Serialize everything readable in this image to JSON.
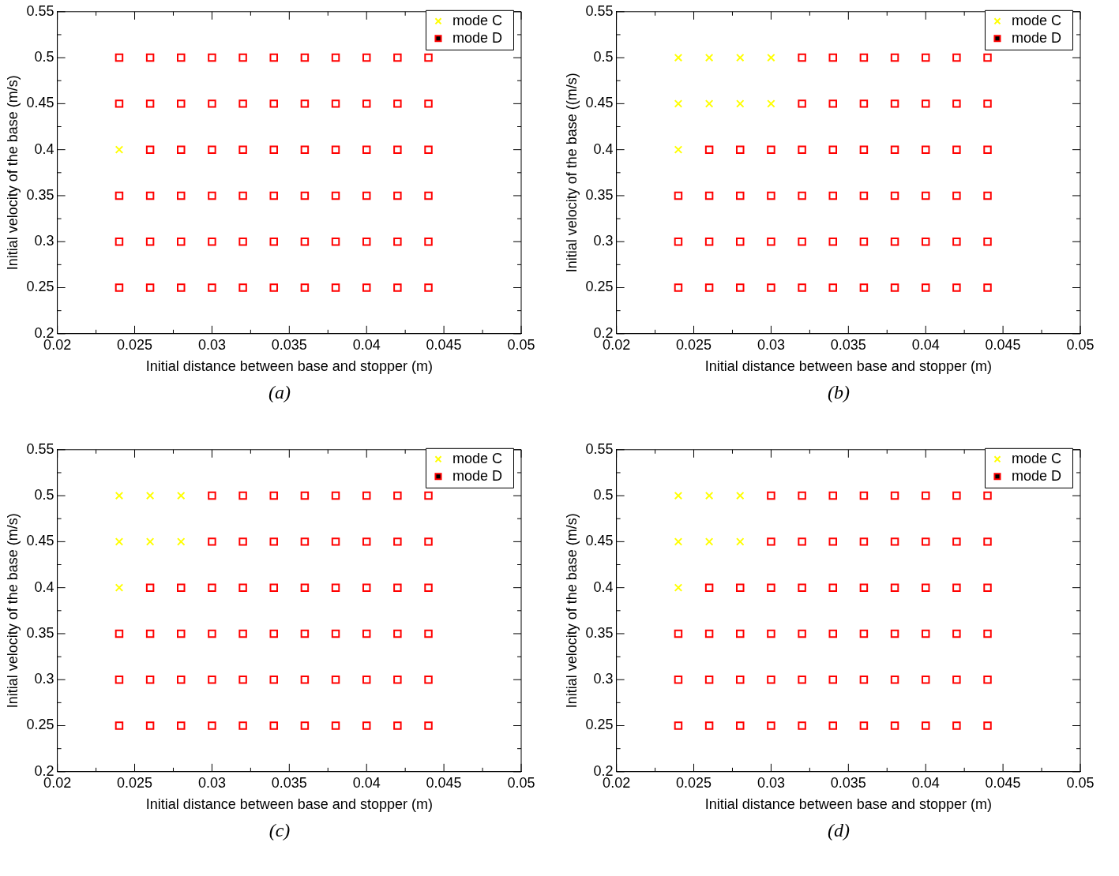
{
  "chart_data": [
    {
      "type": "scatter",
      "xlabel": "Initial distance between base and stopper (m)",
      "ylabel": "Initial velocity of the base (m/s)",
      "xlim": [
        0.02,
        0.05
      ],
      "ylim": [
        0.2,
        0.55
      ],
      "xticks": [
        0.02,
        0.025,
        0.03,
        0.035,
        0.04,
        0.045,
        0.05
      ],
      "yticks": [
        0.2,
        0.25,
        0.3,
        0.35,
        0.4,
        0.45,
        0.5,
        0.55
      ],
      "grid": false,
      "legend": "top right",
      "annotations": [
        "(a)"
      ],
      "series": [
        {
          "name": "mode C",
          "color": "#ffff00",
          "marker": "cross",
          "x": [
            0.024
          ],
          "values": [
            0.4
          ]
        },
        {
          "name": "mode D",
          "color": "#ff0000",
          "marker": "square",
          "x": [
            0.024,
            0.026,
            0.028,
            0.03,
            0.032,
            0.034,
            0.036,
            0.038,
            0.04,
            0.042,
            0.044,
            0.024,
            0.026,
            0.028,
            0.03,
            0.032,
            0.034,
            0.036,
            0.038,
            0.04,
            0.042,
            0.044,
            0.026,
            0.028,
            0.03,
            0.032,
            0.034,
            0.036,
            0.038,
            0.04,
            0.042,
            0.044,
            0.024,
            0.026,
            0.028,
            0.03,
            0.032,
            0.034,
            0.036,
            0.038,
            0.04,
            0.042,
            0.044,
            0.024,
            0.026,
            0.028,
            0.03,
            0.032,
            0.034,
            0.036,
            0.038,
            0.04,
            0.042,
            0.044,
            0.024,
            0.026,
            0.028,
            0.03,
            0.032,
            0.034,
            0.036,
            0.038,
            0.04,
            0.042,
            0.044
          ],
          "values": [
            0.5,
            0.5,
            0.5,
            0.5,
            0.5,
            0.5,
            0.5,
            0.5,
            0.5,
            0.5,
            0.5,
            0.45,
            0.45,
            0.45,
            0.45,
            0.45,
            0.45,
            0.45,
            0.45,
            0.45,
            0.45,
            0.45,
            0.4,
            0.4,
            0.4,
            0.4,
            0.4,
            0.4,
            0.4,
            0.4,
            0.4,
            0.4,
            0.35,
            0.35,
            0.35,
            0.35,
            0.35,
            0.35,
            0.35,
            0.35,
            0.35,
            0.35,
            0.35,
            0.3,
            0.3,
            0.3,
            0.3,
            0.3,
            0.3,
            0.3,
            0.3,
            0.3,
            0.3,
            0.3,
            0.25,
            0.25,
            0.25,
            0.25,
            0.25,
            0.25,
            0.25,
            0.25,
            0.25,
            0.25,
            0.25
          ]
        }
      ]
    },
    {
      "type": "scatter",
      "xlabel": "Initial distance between base and stopper (m)",
      "ylabel": "Initial velocity of the base ((m/s)",
      "xlim": [
        0.02,
        0.05
      ],
      "ylim": [
        0.2,
        0.55
      ],
      "xticks": [
        0.02,
        0.025,
        0.03,
        0.035,
        0.04,
        0.045,
        0.05
      ],
      "yticks": [
        0.2,
        0.25,
        0.3,
        0.35,
        0.4,
        0.45,
        0.5,
        0.55
      ],
      "grid": false,
      "legend": "top right",
      "annotations": [
        "(b)"
      ],
      "series": [
        {
          "name": "mode C",
          "color": "#ffff00",
          "marker": "cross",
          "x": [
            0.024,
            0.026,
            0.028,
            0.03,
            0.024,
            0.026,
            0.028,
            0.03,
            0.024
          ],
          "values": [
            0.5,
            0.5,
            0.5,
            0.5,
            0.45,
            0.45,
            0.45,
            0.45,
            0.4
          ]
        },
        {
          "name": "mode D",
          "color": "#ff0000",
          "marker": "square",
          "x": [
            0.032,
            0.034,
            0.036,
            0.038,
            0.04,
            0.042,
            0.044,
            0.032,
            0.034,
            0.036,
            0.038,
            0.04,
            0.042,
            0.044,
            0.026,
            0.028,
            0.03,
            0.032,
            0.034,
            0.036,
            0.038,
            0.04,
            0.042,
            0.044,
            0.024,
            0.026,
            0.028,
            0.03,
            0.032,
            0.034,
            0.036,
            0.038,
            0.04,
            0.042,
            0.044,
            0.024,
            0.026,
            0.028,
            0.03,
            0.032,
            0.034,
            0.036,
            0.038,
            0.04,
            0.042,
            0.044,
            0.024,
            0.026,
            0.028,
            0.03,
            0.032,
            0.034,
            0.036,
            0.038,
            0.04,
            0.042,
            0.044
          ],
          "values": [
            0.5,
            0.5,
            0.5,
            0.5,
            0.5,
            0.5,
            0.5,
            0.45,
            0.45,
            0.45,
            0.45,
            0.45,
            0.45,
            0.45,
            0.4,
            0.4,
            0.4,
            0.4,
            0.4,
            0.4,
            0.4,
            0.4,
            0.4,
            0.4,
            0.35,
            0.35,
            0.35,
            0.35,
            0.35,
            0.35,
            0.35,
            0.35,
            0.35,
            0.35,
            0.35,
            0.3,
            0.3,
            0.3,
            0.3,
            0.3,
            0.3,
            0.3,
            0.3,
            0.3,
            0.3,
            0.3,
            0.25,
            0.25,
            0.25,
            0.25,
            0.25,
            0.25,
            0.25,
            0.25,
            0.25,
            0.25,
            0.25
          ]
        }
      ]
    },
    {
      "type": "scatter",
      "xlabel": "Initial distance between base and stopper (m)",
      "ylabel": "Initial velocity of the base (m/s)",
      "xlim": [
        0.02,
        0.05
      ],
      "ylim": [
        0.2,
        0.55
      ],
      "xticks": [
        0.02,
        0.025,
        0.03,
        0.035,
        0.04,
        0.045,
        0.05
      ],
      "yticks": [
        0.2,
        0.25,
        0.3,
        0.35,
        0.4,
        0.45,
        0.5,
        0.55
      ],
      "grid": false,
      "legend": "top right",
      "annotations": [
        "(c)"
      ],
      "series": [
        {
          "name": "mode C",
          "color": "#ffff00",
          "marker": "cross",
          "x": [
            0.024,
            0.026,
            0.028,
            0.024,
            0.026,
            0.028,
            0.024
          ],
          "values": [
            0.5,
            0.5,
            0.5,
            0.45,
            0.45,
            0.45,
            0.4
          ]
        },
        {
          "name": "mode D",
          "color": "#ff0000",
          "marker": "square",
          "x": [
            0.03,
            0.032,
            0.034,
            0.036,
            0.038,
            0.04,
            0.042,
            0.044,
            0.03,
            0.032,
            0.034,
            0.036,
            0.038,
            0.04,
            0.042,
            0.044,
            0.026,
            0.028,
            0.03,
            0.032,
            0.034,
            0.036,
            0.038,
            0.04,
            0.042,
            0.044,
            0.024,
            0.026,
            0.028,
            0.03,
            0.032,
            0.034,
            0.036,
            0.038,
            0.04,
            0.042,
            0.044,
            0.024,
            0.026,
            0.028,
            0.03,
            0.032,
            0.034,
            0.036,
            0.038,
            0.04,
            0.042,
            0.044,
            0.024,
            0.026,
            0.028,
            0.03,
            0.032,
            0.034,
            0.036,
            0.038,
            0.04,
            0.042,
            0.044
          ],
          "values": [
            0.5,
            0.5,
            0.5,
            0.5,
            0.5,
            0.5,
            0.5,
            0.5,
            0.45,
            0.45,
            0.45,
            0.45,
            0.45,
            0.45,
            0.45,
            0.45,
            0.4,
            0.4,
            0.4,
            0.4,
            0.4,
            0.4,
            0.4,
            0.4,
            0.4,
            0.4,
            0.35,
            0.35,
            0.35,
            0.35,
            0.35,
            0.35,
            0.35,
            0.35,
            0.35,
            0.35,
            0.35,
            0.3,
            0.3,
            0.3,
            0.3,
            0.3,
            0.3,
            0.3,
            0.3,
            0.3,
            0.3,
            0.3,
            0.25,
            0.25,
            0.25,
            0.25,
            0.25,
            0.25,
            0.25,
            0.25,
            0.25,
            0.25,
            0.25
          ]
        }
      ]
    },
    {
      "type": "scatter",
      "xlabel": "Initial distance between base and stopper (m)",
      "ylabel": "Initial velocity of the base (m/s)",
      "xlim": [
        0.02,
        0.05
      ],
      "ylim": [
        0.2,
        0.55
      ],
      "xticks": [
        0.02,
        0.025,
        0.03,
        0.035,
        0.04,
        0.045,
        0.05
      ],
      "yticks": [
        0.2,
        0.25,
        0.3,
        0.35,
        0.4,
        0.45,
        0.5,
        0.55
      ],
      "grid": false,
      "legend": "top right",
      "annotations": [
        "(d)"
      ],
      "series": [
        {
          "name": "mode C",
          "color": "#ffff00",
          "marker": "cross",
          "x": [
            0.024,
            0.026,
            0.028,
            0.024,
            0.026,
            0.028,
            0.024
          ],
          "values": [
            0.5,
            0.5,
            0.5,
            0.45,
            0.45,
            0.45,
            0.4
          ]
        },
        {
          "name": "mode D",
          "color": "#ff0000",
          "marker": "square",
          "x": [
            0.03,
            0.032,
            0.034,
            0.036,
            0.038,
            0.04,
            0.042,
            0.044,
            0.03,
            0.032,
            0.034,
            0.036,
            0.038,
            0.04,
            0.042,
            0.044,
            0.026,
            0.028,
            0.03,
            0.032,
            0.034,
            0.036,
            0.038,
            0.04,
            0.042,
            0.044,
            0.024,
            0.026,
            0.028,
            0.03,
            0.032,
            0.034,
            0.036,
            0.038,
            0.04,
            0.042,
            0.044,
            0.024,
            0.026,
            0.028,
            0.03,
            0.032,
            0.034,
            0.036,
            0.038,
            0.04,
            0.042,
            0.044,
            0.024,
            0.026,
            0.028,
            0.03,
            0.032,
            0.034,
            0.036,
            0.038,
            0.04,
            0.042,
            0.044
          ],
          "values": [
            0.5,
            0.5,
            0.5,
            0.5,
            0.5,
            0.5,
            0.5,
            0.5,
            0.45,
            0.45,
            0.45,
            0.45,
            0.45,
            0.45,
            0.45,
            0.45,
            0.4,
            0.4,
            0.4,
            0.4,
            0.4,
            0.4,
            0.4,
            0.4,
            0.4,
            0.4,
            0.35,
            0.35,
            0.35,
            0.35,
            0.35,
            0.35,
            0.35,
            0.35,
            0.35,
            0.35,
            0.35,
            0.3,
            0.3,
            0.3,
            0.3,
            0.3,
            0.3,
            0.3,
            0.3,
            0.3,
            0.3,
            0.3,
            0.25,
            0.25,
            0.25,
            0.25,
            0.25,
            0.25,
            0.25,
            0.25,
            0.25,
            0.25,
            0.25
          ]
        }
      ]
    }
  ]
}
